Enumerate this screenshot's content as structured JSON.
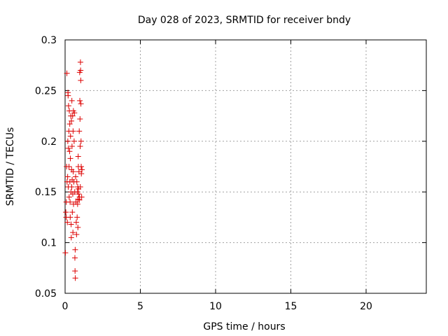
{
  "chart_data": {
    "type": "scatter",
    "title": "Day 028 of 2023, SRMTID for receiver bndy",
    "xlabel": "GPS time / hours",
    "ylabel": "SRMTID / TECUs",
    "xlim": [
      0,
      24
    ],
    "ylim": [
      0.05,
      0.3
    ],
    "xticks": [
      0,
      5,
      10,
      15,
      20
    ],
    "yticks": [
      0.05,
      0.1,
      0.15,
      0.2,
      0.25,
      0.3
    ],
    "xtick_labels": [
      "0",
      "5",
      "10",
      "15",
      "20"
    ],
    "ytick_labels": [
      "0.05",
      "0.1",
      "0.15",
      "0.2",
      "0.25",
      "0.3"
    ],
    "grid": true,
    "marker": "+",
    "color": "#dd0000",
    "series": [
      {
        "name": "bndy",
        "points": [
          [
            0.02,
            0.09
          ],
          [
            0.05,
            0.13
          ],
          [
            0.07,
            0.125
          ],
          [
            0.08,
            0.14
          ],
          [
            0.1,
            0.175
          ],
          [
            0.12,
            0.267
          ],
          [
            0.13,
            0.16
          ],
          [
            0.15,
            0.12
          ],
          [
            0.17,
            0.165
          ],
          [
            0.18,
            0.2
          ],
          [
            0.19,
            0.248
          ],
          [
            0.2,
            0.245
          ],
          [
            0.21,
            0.155
          ],
          [
            0.22,
            0.193
          ],
          [
            0.23,
            0.235
          ],
          [
            0.25,
            0.21
          ],
          [
            0.26,
            0.175
          ],
          [
            0.27,
            0.145
          ],
          [
            0.28,
            0.23
          ],
          [
            0.3,
            0.19
          ],
          [
            0.31,
            0.217
          ],
          [
            0.32,
            0.16
          ],
          [
            0.33,
            0.14
          ],
          [
            0.34,
            0.125
          ],
          [
            0.35,
            0.183
          ],
          [
            0.36,
            0.205
          ],
          [
            0.38,
            0.225
          ],
          [
            0.39,
            0.15
          ],
          [
            0.4,
            0.118
          ],
          [
            0.41,
            0.105
          ],
          [
            0.42,
            0.22
          ],
          [
            0.43,
            0.172
          ],
          [
            0.44,
            0.155
          ],
          [
            0.45,
            0.24
          ],
          [
            0.46,
            0.195
          ],
          [
            0.47,
            0.162
          ],
          [
            0.48,
            0.13
          ],
          [
            0.5,
            0.225
          ],
          [
            0.51,
            0.148
          ],
          [
            0.52,
            0.11
          ],
          [
            0.53,
            0.21
          ],
          [
            0.54,
            0.17
          ],
          [
            0.55,
            0.23
          ],
          [
            0.56,
            0.138
          ],
          [
            0.58,
            0.16
          ],
          [
            0.6,
            0.2
          ],
          [
            0.62,
            0.228
          ],
          [
            0.64,
            0.15
          ],
          [
            0.65,
            0.085
          ],
          [
            0.66,
            0.072
          ],
          [
            0.67,
            0.093
          ],
          [
            0.68,
            0.065
          ],
          [
            0.7,
            0.165
          ],
          [
            0.72,
            0.14
          ],
          [
            0.74,
            0.12
          ],
          [
            0.76,
            0.108
          ],
          [
            0.78,
            0.16
          ],
          [
            0.8,
            0.125
          ],
          [
            0.82,
            0.15
          ],
          [
            0.83,
            0.138
          ],
          [
            0.84,
            0.155
          ],
          [
            0.85,
            0.115
          ],
          [
            0.86,
            0.143
          ],
          [
            0.87,
            0.185
          ],
          [
            0.88,
            0.175
          ],
          [
            0.89,
            0.153
          ],
          [
            0.9,
            0.148
          ],
          [
            0.92,
            0.17
          ],
          [
            0.94,
            0.21
          ],
          [
            0.95,
            0.142
          ],
          [
            0.96,
            0.145
          ],
          [
            0.97,
            0.268
          ],
          [
            0.98,
            0.24
          ],
          [
            0.99,
            0.222
          ],
          [
            1.0,
            0.195
          ],
          [
            1.01,
            0.155
          ],
          [
            1.02,
            0.278
          ],
          [
            1.03,
            0.27
          ],
          [
            1.04,
            0.26
          ],
          [
            1.05,
            0.237
          ],
          [
            1.06,
            0.2
          ],
          [
            1.07,
            0.175
          ],
          [
            1.08,
            0.168
          ],
          [
            1.1,
            0.145
          ],
          [
            1.12,
            0.172
          ]
        ]
      }
    ]
  }
}
